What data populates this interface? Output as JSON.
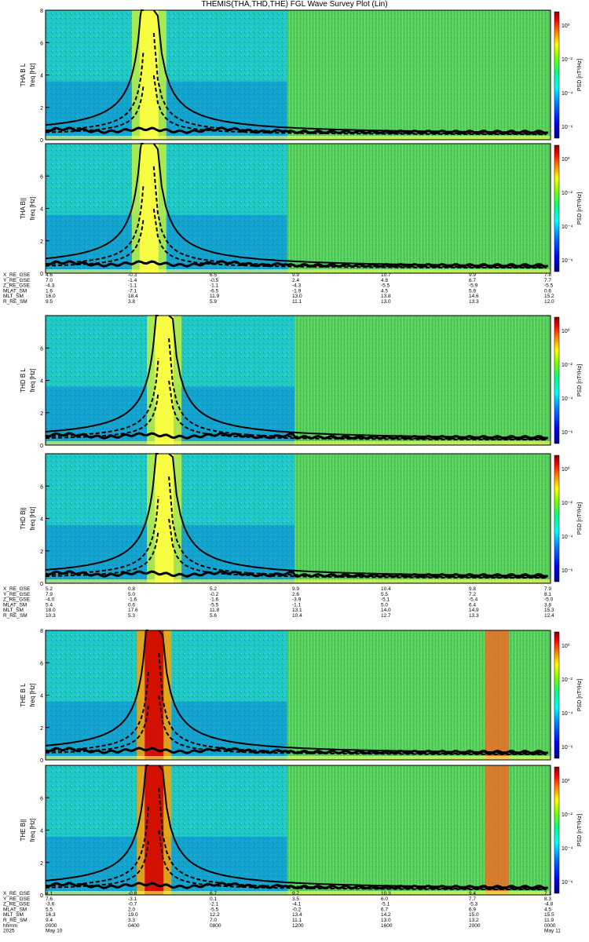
{
  "title": "THEMIS(THA,THD,THE) FGL Wave Survey Plot (Lin)",
  "colors": {
    "colorbar": [
      "#000080",
      "#0000ff",
      "#0080ff",
      "#00ffff",
      "#00ff80",
      "#80ff00",
      "#ffff00",
      "#ff8000",
      "#ff0000",
      "#800000"
    ],
    "curve": "#000000"
  },
  "chart_data": {
    "type": "heatmap",
    "panels": [
      {
        "ylabel": "THA B L",
        "unit": "freq [Hz]",
        "zlabel": "PSD [nT²/Hz]",
        "yticks": [
          "0",
          "2",
          "4",
          "6",
          "8"
        ],
        "zticks": [
          "10⁰",
          "10⁻²",
          "10⁻⁴",
          "10⁻⁶"
        ],
        "yrange": [
          0,
          8
        ],
        "zscale": "log"
      },
      {
        "ylabel": "THA B||",
        "unit": "freq [Hz]",
        "zlabel": "PSD [nT²/Hz]",
        "yticks": [
          "0",
          "2",
          "4",
          "6"
        ],
        "zticks": [
          "10⁰",
          "10⁻²",
          "10⁻⁴",
          "10⁻⁶"
        ],
        "yrange": [
          0,
          8
        ],
        "zscale": "log"
      },
      {
        "ylabel": "THD B L",
        "unit": "freq [Hz]",
        "zlabel": "PSD [nT²/Hz]",
        "yticks": [
          "0",
          "2",
          "4",
          "6"
        ],
        "zticks": [
          "10⁰",
          "10⁻²",
          "10⁻⁴",
          "10⁻⁶"
        ],
        "yrange": [
          0,
          8
        ],
        "zscale": "log"
      },
      {
        "ylabel": "THD B||",
        "unit": "freq [Hz]",
        "zlabel": "PSD [nT²/Hz]",
        "yticks": [
          "0",
          "2",
          "4",
          "6"
        ],
        "zticks": [
          "10⁰",
          "10⁻²",
          "10⁻⁴",
          "10⁻⁶"
        ],
        "yrange": [
          0,
          8
        ],
        "zscale": "log"
      },
      {
        "ylabel": "THE B L",
        "unit": "freq [Hz]",
        "zlabel": "PSD [nT²/Hz]",
        "yticks": [
          "0",
          "2",
          "4",
          "6",
          "8"
        ],
        "zticks": [
          "10⁰",
          "10⁻²",
          "10⁻⁴",
          "10⁻⁶"
        ],
        "yrange": [
          0,
          8
        ],
        "zscale": "log"
      },
      {
        "ylabel": "THE B||",
        "unit": "freq [Hz]",
        "zlabel": "PSD [nT²/Hz]",
        "yticks": [
          "0",
          "2",
          "4",
          "6"
        ],
        "zticks": [
          "10⁰",
          "10⁻²",
          "10⁻⁴",
          "10⁻⁶"
        ],
        "yrange": [
          0,
          8
        ],
        "zscale": "log"
      }
    ],
    "ephemeris": [
      {
        "rows": [
          "X_RE_GSE",
          "Y_RE_GSE",
          "Z_RE_GSE",
          "MLAT_SM",
          "MLT_SM",
          "R_RE_SM"
        ],
        "values": [
          [
            "4.6",
            "-0.3",
            "6.5",
            "9.9",
            "10.7",
            "9.9",
            "7.8"
          ],
          [
            "7.0",
            "-1.4",
            "-0.5",
            "2.4",
            "4.8",
            "6.7",
            "7.7"
          ],
          [
            "-4.3",
            "-1.1",
            "-1.1",
            "-4.3",
            "-5.5",
            "-5.9",
            "-5.5"
          ],
          [
            "1.6",
            "-7.1",
            "-6.5",
            "-1.9",
            "4.5",
            "5.9",
            "0.6"
          ],
          [
            "16.0",
            "18.4",
            "11.9",
            "13.0",
            "13.8",
            "14.6",
            "15.2"
          ],
          [
            "9.5",
            "3.8",
            "5.9",
            "11.1",
            "13.0",
            "13.3",
            "12.0"
          ]
        ]
      },
      {
        "rows": [
          "X_RE_GSE",
          "Y_RE_GSE",
          "Z_RE_GSE",
          "MLAT_SM",
          "MLT_SM",
          "R_RE_SM"
        ],
        "values": [
          [
            "5.2",
            "0.8",
            "5.2",
            "9.9",
            "10.4",
            "9.8",
            "7.9"
          ],
          [
            "7.9",
            "5.0",
            "-0.2",
            "2.6",
            "5.5",
            "7.2",
            "8.1"
          ],
          [
            "-4.0",
            "-1.6",
            "-1.6",
            "-3.9",
            "-5.1",
            "-5.4",
            "-5.0"
          ],
          [
            "5.4",
            "0.6",
            "-5.5",
            "-1.1",
            "5.0",
            "6.4",
            "3.8"
          ],
          [
            "18.0",
            "17.6",
            "11.8",
            "13.1",
            "14.0",
            "14.9",
            "15.3"
          ],
          [
            "10.3",
            "5.3",
            "5.6",
            "10.4",
            "12.7",
            "13.3",
            "12.4"
          ]
        ]
      },
      {
        "rows": [
          "X_RE_GSE",
          "Y_RE_GSE",
          "Z_RE_GSE",
          "MLAT_SM",
          "MLT_SM",
          "R_RE_SM",
          "hhmm",
          "2025"
        ],
        "values": [
          [
            "4.1",
            "-0.8",
            "6.7",
            "9.7",
            "10.3",
            "9.4",
            "7.1"
          ],
          [
            "7.6",
            "-3.1",
            "0.1",
            "3.5",
            "6.0",
            "7.7",
            "8.3"
          ],
          [
            "-3.6",
            "-0.7",
            "-2.1",
            "-4.1",
            "-5.1",
            "-5.3",
            "-4.8"
          ],
          [
            "5.5",
            "2.0",
            "-5.5",
            "-0.2",
            "6.7",
            "6.9",
            "4.5"
          ],
          [
            "16.3",
            "19.0",
            "12.2",
            "13.4",
            "14.2",
            "15.0",
            "15.5"
          ],
          [
            "9.4",
            "3.3",
            "7.0",
            "11.1",
            "13.0",
            "13.2",
            "11.9"
          ],
          [
            "0000",
            "0400",
            "0800",
            "1200",
            "1600",
            "2000",
            "0000"
          ],
          [
            "May 10",
            "",
            "",
            "",
            "",
            "",
            "May 11"
          ]
        ]
      }
    ],
    "x": [
      "0000",
      "0400",
      "0800",
      "1200",
      "1600",
      "2000",
      "0000"
    ],
    "xrange": [
      "2025-05-10 00:00",
      "2025-05-11 00:00"
    ]
  }
}
